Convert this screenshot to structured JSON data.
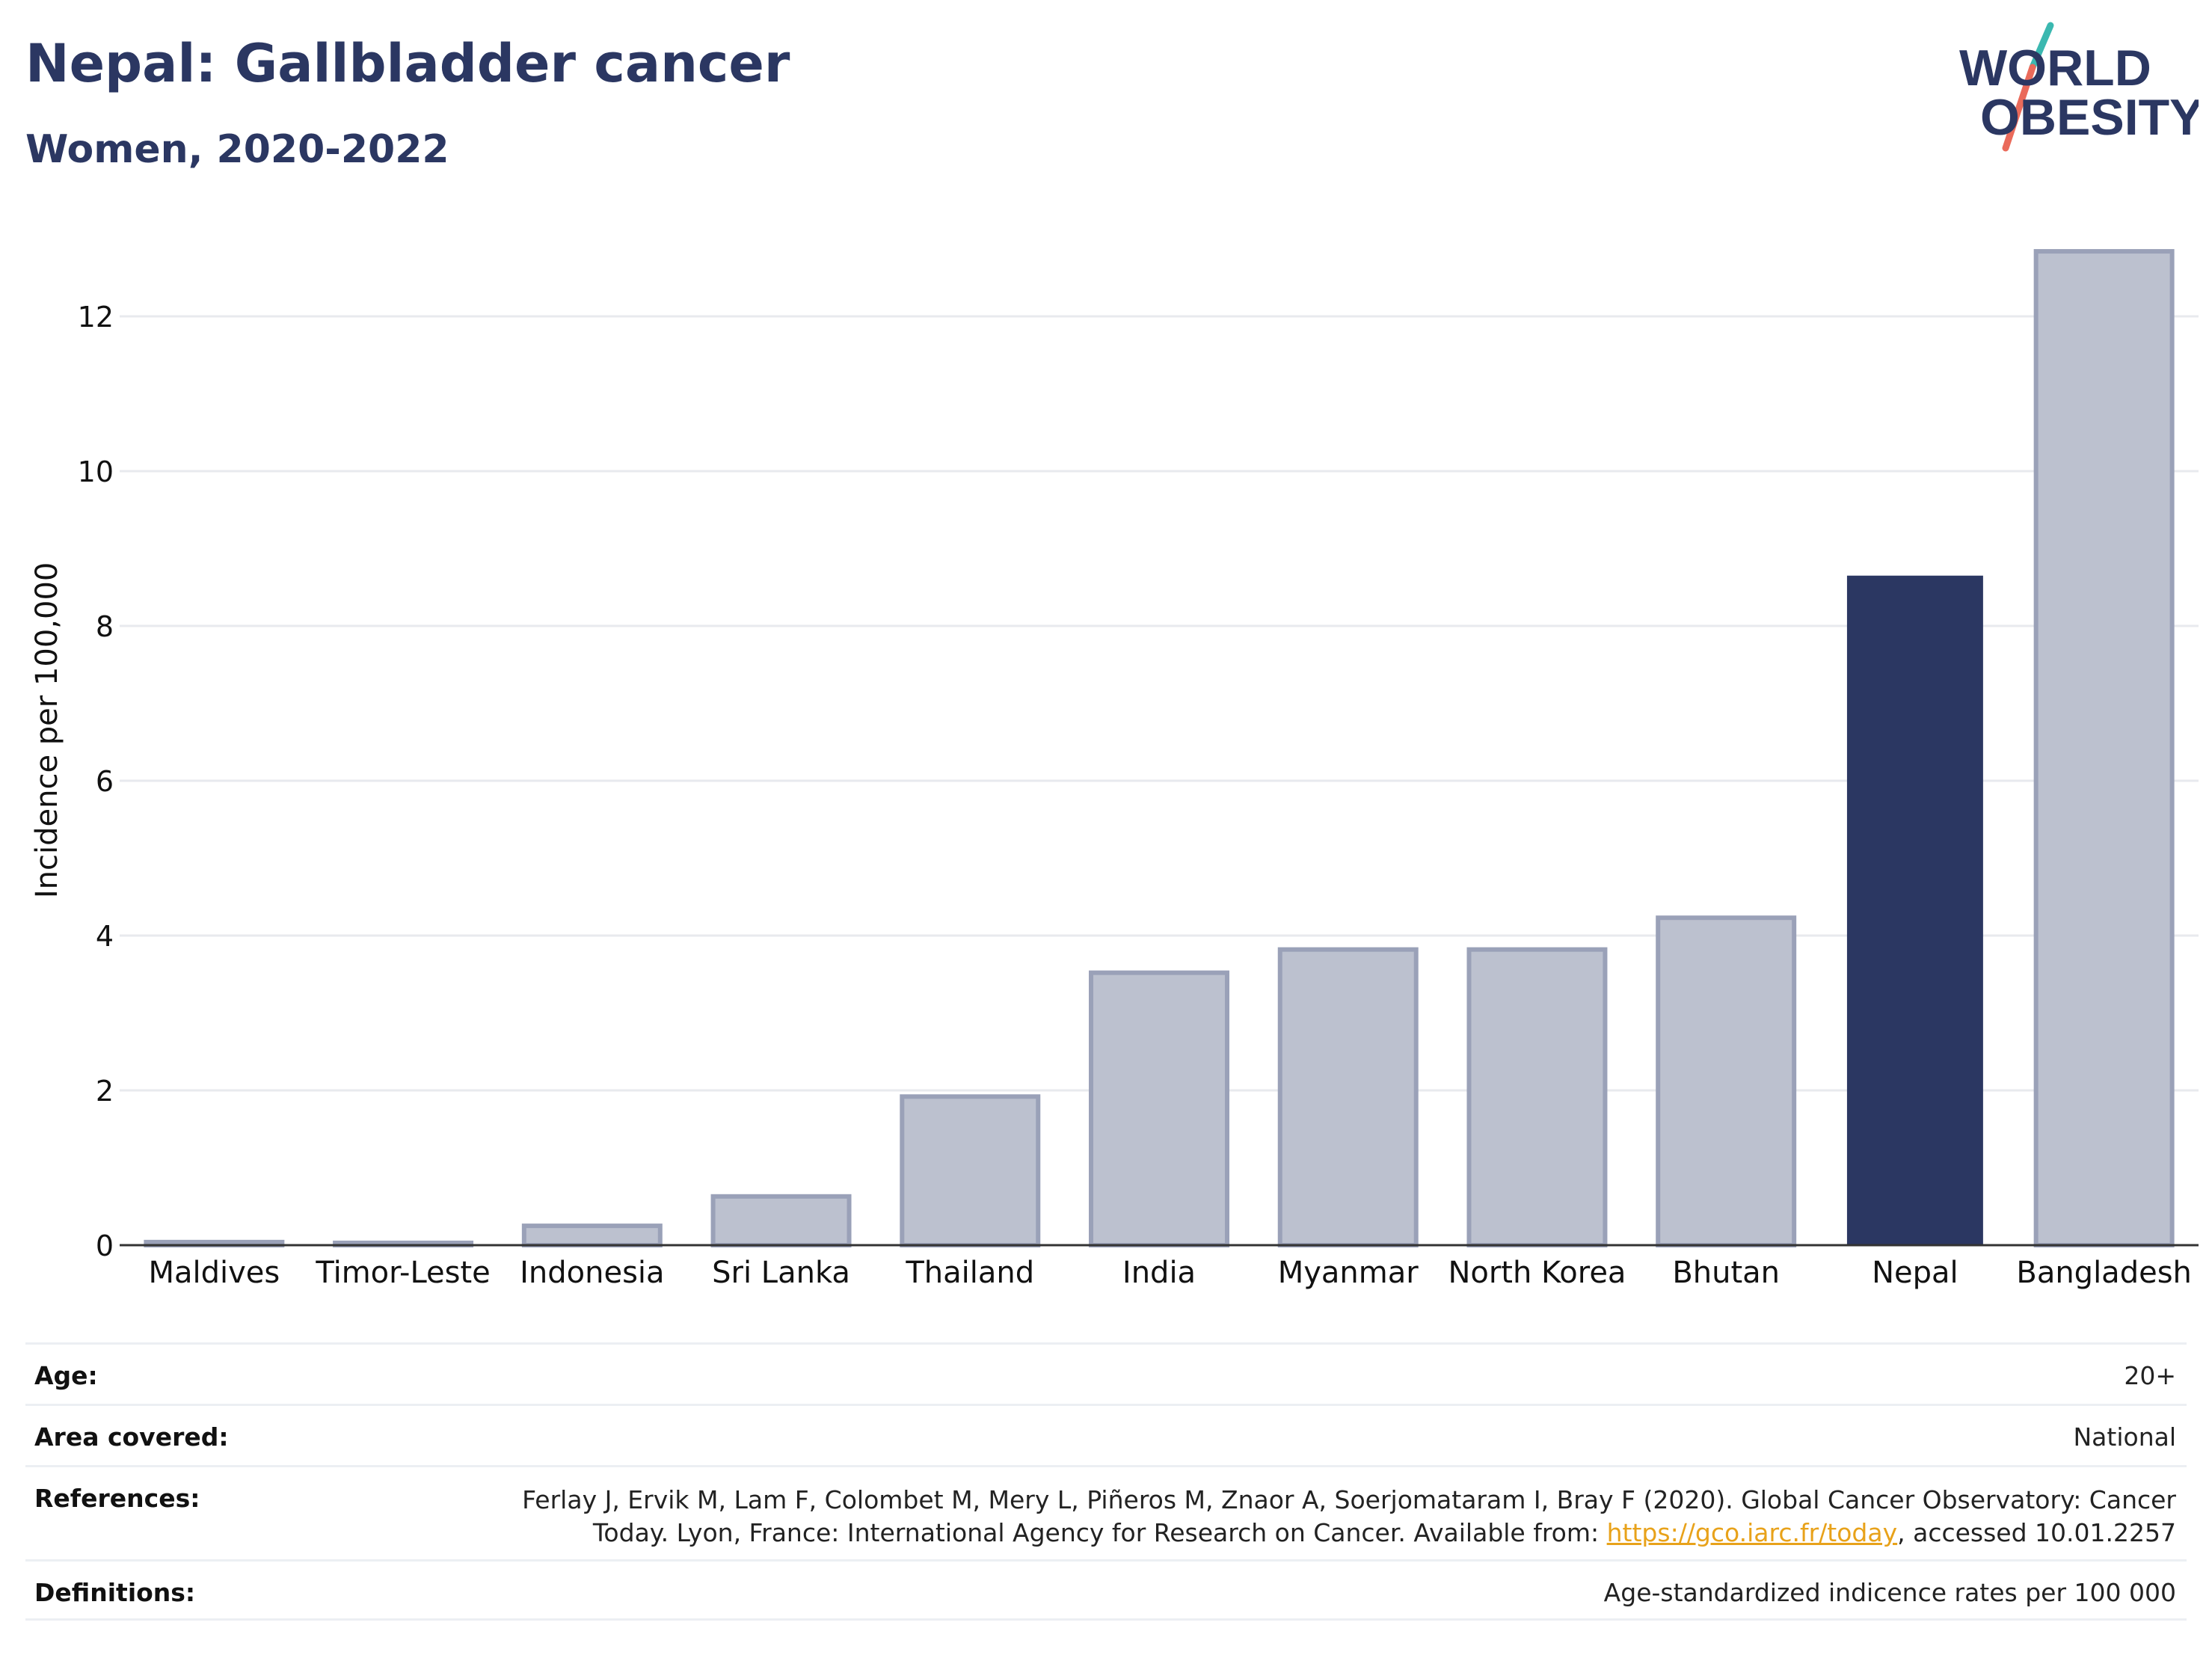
{
  "header": {
    "title": "Nepal: Gallbladder cancer",
    "subtitle": "Women, 2020-2022"
  },
  "logo": {
    "line1": "WORLD",
    "line2": "OBESITY",
    "colors": {
      "text": "#2b3762",
      "slash_top": "#3bb8b0",
      "slash_bottom": "#ea6a5a"
    }
  },
  "colors": {
    "highlight_bar": "#2b3762",
    "other_bar_fill": "#bcc1cf",
    "other_bar_outline": "#9aa1b8",
    "grid": "#e8eaee",
    "axis": "#333333"
  },
  "chart_data": {
    "type": "bar",
    "title": "Nepal: Gallbladder cancer",
    "subtitle": "Women, 2020-2022",
    "xlabel": "",
    "ylabel": "Incidence per 100,000",
    "categories": [
      "Maldives",
      "Timor-Leste",
      "Indonesia",
      "Sri Lanka",
      "Thailand",
      "India",
      "Myanmar",
      "North Korea",
      "Bhutan",
      "Nepal",
      "Bangladesh"
    ],
    "values": [
      0.04,
      0.03,
      0.25,
      0.63,
      1.92,
      3.52,
      3.82,
      3.82,
      4.23,
      8.65,
      12.84
    ],
    "highlight": "Nepal",
    "ylim": [
      0,
      13.5
    ],
    "yticks": [
      0,
      2,
      4,
      6,
      8,
      10,
      12
    ],
    "grid": true,
    "legend": "none"
  },
  "meta": {
    "age_label": "Age:",
    "age_value": "20+",
    "area_label": "Area covered:",
    "area_value": "National",
    "references_label": "References:",
    "references_line1": "Ferlay J, Ervik M, Lam F, Colombet M, Mery L, Piñeros M, Znaor A, Soerjomataram I, Bray F (2020). Global Cancer Observatory: Cancer",
    "references_line2_pre": "Today. Lyon, France: International Agency for Research on Cancer. Available from: ",
    "references_link": "https://gco.iarc.fr/today",
    "references_line2_post": ", accessed 10.01.2257",
    "definitions_label": "Definitions:",
    "definitions_value": "Age-standardized indicence rates per 100 000"
  }
}
